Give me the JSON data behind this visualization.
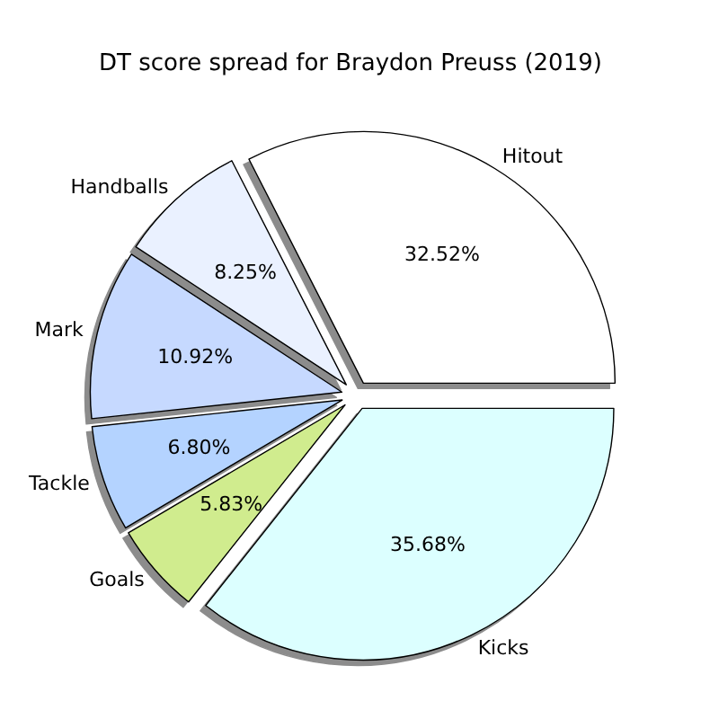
{
  "chart_data": {
    "type": "pie",
    "title": "DT score spread for Braydon Preuss (2019)",
    "categories": [
      "Hitout",
      "Handballs",
      "Mark",
      "Tackle",
      "Goals",
      "Kicks"
    ],
    "values": [
      32.52,
      8.25,
      10.92,
      6.8,
      5.83,
      35.68
    ],
    "colors": [
      "#ffffff",
      "#eaf1ff",
      "#c6d9ff",
      "#b4d3ff",
      "#d0ec8e",
      "#dcffff"
    ],
    "value_labels": [
      "32.52%",
      "8.25%",
      "10.92%",
      "6.80%",
      "5.83%",
      "35.68%"
    ],
    "legend": false
  }
}
